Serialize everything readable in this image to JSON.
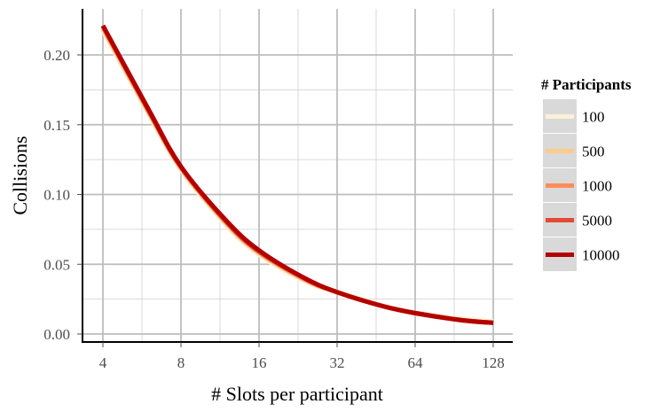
{
  "chart_data": {
    "type": "line",
    "title": "",
    "xlabel": "# Slots per participant",
    "ylabel": "Collisions",
    "x_scale": "log2",
    "xlim": [
      4,
      128
    ],
    "ylim": [
      0,
      0.22
    ],
    "x_ticks": [
      4,
      8,
      16,
      32,
      64,
      128
    ],
    "x_tick_labels": [
      "4",
      "8",
      "16",
      "32",
      "64",
      "128"
    ],
    "y_ticks": [
      0.0,
      0.05,
      0.1,
      0.15,
      0.2
    ],
    "y_tick_labels": [
      "0.00",
      "0.05",
      "0.10",
      "0.15",
      "0.20"
    ],
    "grid": true,
    "legend": {
      "title": "# Participants",
      "placement": "right"
    },
    "x": [
      4,
      6,
      8,
      12,
      16,
      24,
      32,
      48,
      64,
      96,
      128
    ],
    "series": [
      {
        "name": "100",
        "color": "#fdf0d9",
        "values": [
          0.218,
          0.158,
          0.118,
          0.078,
          0.057,
          0.038,
          0.03,
          0.02,
          0.015,
          0.011,
          0.009
        ]
      },
      {
        "name": "500",
        "color": "#fdcc8a",
        "values": [
          0.219,
          0.159,
          0.119,
          0.079,
          0.058,
          0.039,
          0.03,
          0.02,
          0.015,
          0.01,
          0.008
        ]
      },
      {
        "name": "1000",
        "color": "#fc8d59",
        "values": [
          0.22,
          0.16,
          0.119,
          0.08,
          0.059,
          0.039,
          0.03,
          0.02,
          0.015,
          0.01,
          0.008
        ]
      },
      {
        "name": "5000",
        "color": "#e34a33",
        "values": [
          0.221,
          0.16,
          0.12,
          0.08,
          0.059,
          0.04,
          0.03,
          0.02,
          0.015,
          0.01,
          0.008
        ]
      },
      {
        "name": "10000",
        "color": "#b30000",
        "values": [
          0.221,
          0.161,
          0.12,
          0.081,
          0.06,
          0.04,
          0.03,
          0.02,
          0.015,
          0.01,
          0.008
        ]
      }
    ]
  }
}
